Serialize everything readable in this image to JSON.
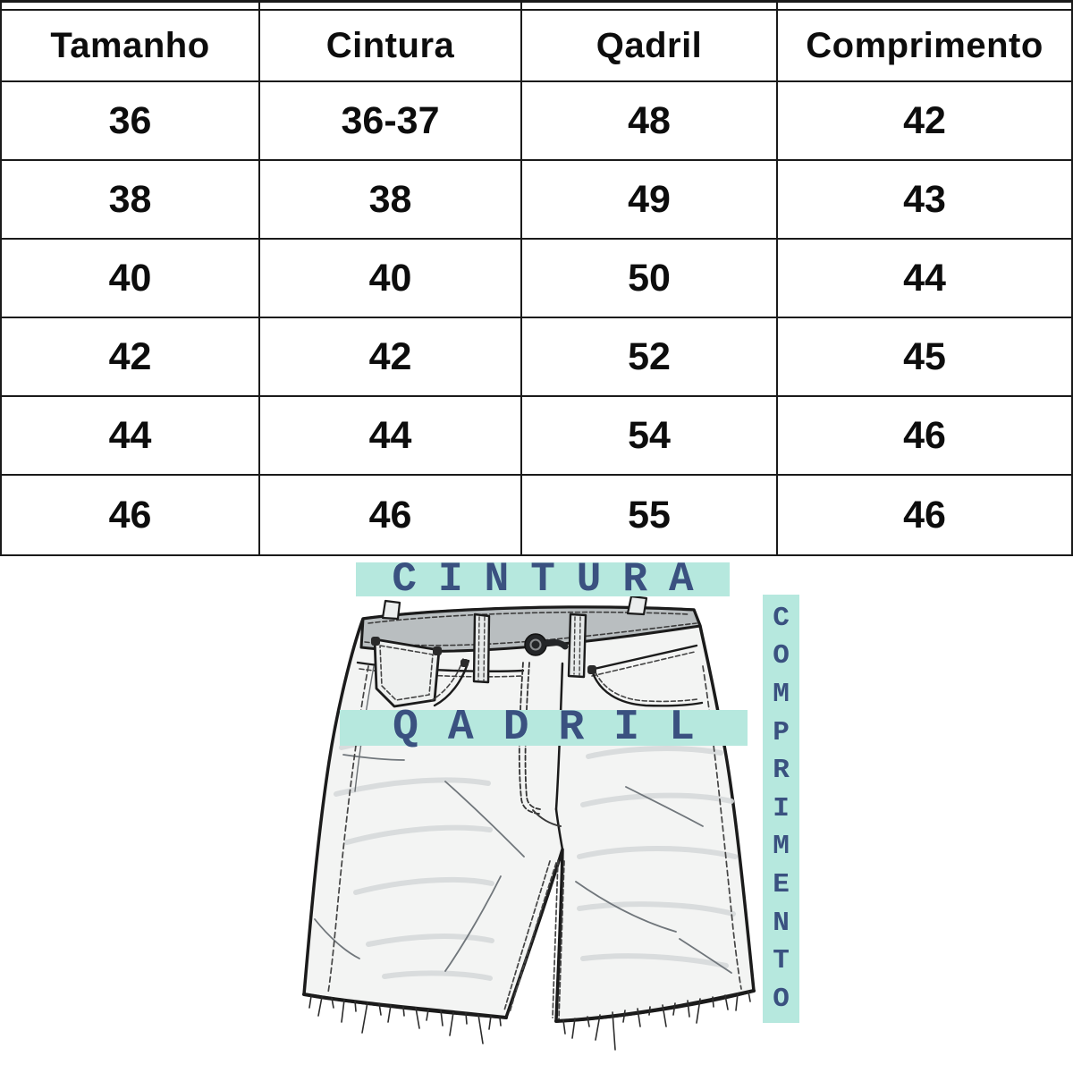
{
  "size_table": {
    "headers": [
      "Tamanho",
      "Cintura",
      "Qadril",
      "Comprimento"
    ],
    "rows": [
      [
        "36",
        "36-37",
        "48",
        "42"
      ],
      [
        "38",
        "38",
        "49",
        "43"
      ],
      [
        "40",
        "40",
        "50",
        "44"
      ],
      [
        "42",
        "42",
        "52",
        "45"
      ],
      [
        "44",
        "44",
        "54",
        "46"
      ],
      [
        "46",
        "46",
        "55",
        "46"
      ]
    ]
  },
  "measurement_diagram": {
    "waist_label": "CINTURA",
    "hip_label": "QADRIL",
    "length_label": "COMPRIMENTO",
    "colors": {
      "band_background": "#b6e8de",
      "band_text": "#3a5180",
      "table_border": "#1a1a1a",
      "denim_outline": "#1b1b1b",
      "waistband_fill": "#b9bec0"
    }
  }
}
